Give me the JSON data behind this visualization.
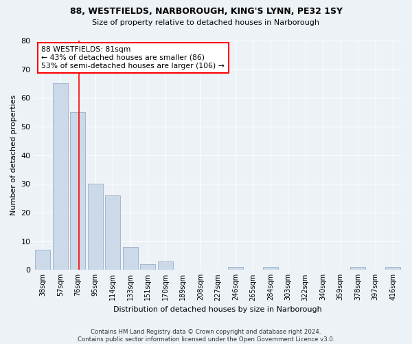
{
  "title_line1": "88, WESTFIELDS, NARBOROUGH, KING'S LYNN, PE32 1SY",
  "title_line2": "Size of property relative to detached houses in Narborough",
  "xlabel": "Distribution of detached houses by size in Narborough",
  "ylabel": "Number of detached properties",
  "bar_color": "#ccd9e8",
  "bar_edge_color": "#9ab0c8",
  "categories": [
    "38sqm",
    "57sqm",
    "76sqm",
    "95sqm",
    "114sqm",
    "133sqm",
    "151sqm",
    "170sqm",
    "189sqm",
    "208sqm",
    "227sqm",
    "246sqm",
    "265sqm",
    "284sqm",
    "303sqm",
    "322sqm",
    "340sqm",
    "359sqm",
    "378sqm",
    "397sqm",
    "416sqm"
  ],
  "values": [
    7,
    65,
    55,
    30,
    26,
    8,
    2,
    3,
    0,
    0,
    0,
    1,
    0,
    1,
    0,
    0,
    0,
    0,
    1,
    0,
    1
  ],
  "ylim": [
    0,
    80
  ],
  "yticks": [
    0,
    10,
    20,
    30,
    40,
    50,
    60,
    70,
    80
  ],
  "property_line_x": 2.07,
  "annotation_line1": "88 WESTFIELDS: 81sqm",
  "annotation_line2": "← 43% of detached houses are smaller (86)",
  "annotation_line3": "53% of semi-detached houses are larger (106) →",
  "annotation_box_color": "white",
  "annotation_box_edge_color": "red",
  "red_line_color": "red",
  "footer_line1": "Contains HM Land Registry data © Crown copyright and database right 2024.",
  "footer_line2": "Contains public sector information licensed under the Open Government Licence v3.0.",
  "background_color": "#edf2f7",
  "grid_color": "white",
  "axis_bg_color": "#edf2f7"
}
